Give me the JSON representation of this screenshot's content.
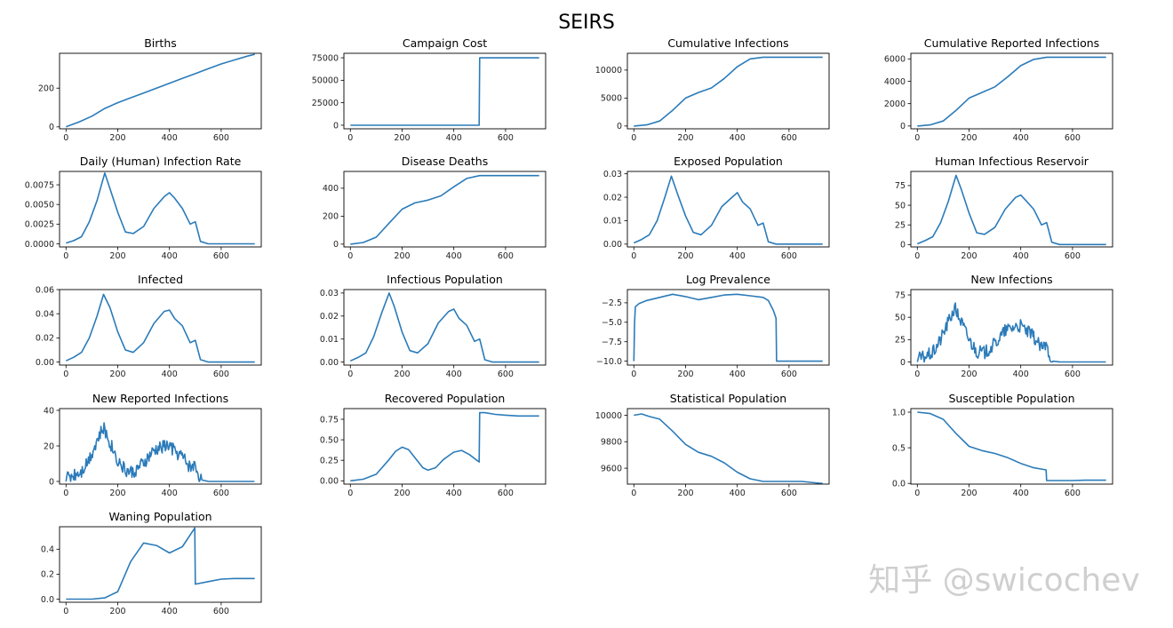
{
  "figure": {
    "title": "SEIRS",
    "watermark": "知乎 @swicochev"
  },
  "style": {
    "line_color": "#2b7bb9",
    "axes_color": "#000000"
  },
  "chart_data": [
    {
      "type": "line",
      "title": "Births",
      "xlim": [
        -25,
        755
      ],
      "ylim": [
        -10,
        380
      ],
      "xticks": [
        0,
        200,
        400,
        600
      ],
      "yticks": [
        0,
        200
      ],
      "ytick_labels": [
        "0",
        "200"
      ],
      "x": [
        0,
        50,
        100,
        150,
        200,
        250,
        300,
        350,
        400,
        450,
        500,
        550,
        600,
        650,
        700,
        730
      ],
      "y": [
        0,
        25,
        55,
        95,
        125,
        150,
        175,
        200,
        225,
        250,
        275,
        300,
        325,
        345,
        365,
        375
      ]
    },
    {
      "type": "line",
      "title": "Campaign Cost",
      "xlim": [
        -25,
        755
      ],
      "ylim": [
        -4000,
        80000
      ],
      "xticks": [
        0,
        200,
        400,
        600
      ],
      "yticks": [
        0,
        25000,
        50000,
        75000
      ],
      "ytick_labels": [
        "0",
        "25000",
        "50000",
        "75000"
      ],
      "x": [
        0,
        498,
        500,
        730
      ],
      "y": [
        0,
        0,
        75000,
        75000
      ]
    },
    {
      "type": "line",
      "title": "Cumulative Infections",
      "xlim": [
        -25,
        755
      ],
      "ylim": [
        -500,
        13000
      ],
      "xticks": [
        0,
        200,
        400,
        600
      ],
      "yticks": [
        0,
        5000,
        10000
      ],
      "ytick_labels": [
        "0",
        "5000",
        "10000"
      ],
      "x": [
        0,
        50,
        100,
        150,
        200,
        250,
        300,
        350,
        400,
        450,
        500,
        550,
        600,
        730
      ],
      "y": [
        0,
        200,
        900,
        2800,
        5000,
        6000,
        6800,
        8500,
        10600,
        12000,
        12300,
        12300,
        12300,
        12300
      ]
    },
    {
      "type": "line",
      "title": "Cumulative Reported Infections",
      "xlim": [
        -25,
        755
      ],
      "ylim": [
        -250,
        6500
      ],
      "xticks": [
        0,
        200,
        400,
        600
      ],
      "yticks": [
        0,
        2000,
        4000,
        6000
      ],
      "ytick_labels": [
        "0",
        "2000",
        "4000",
        "6000"
      ],
      "x": [
        0,
        50,
        100,
        150,
        200,
        250,
        300,
        350,
        400,
        450,
        500,
        550,
        600,
        730
      ],
      "y": [
        0,
        100,
        450,
        1400,
        2500,
        3000,
        3500,
        4400,
        5400,
        5950,
        6150,
        6150,
        6150,
        6150
      ]
    },
    {
      "type": "line",
      "title": "Daily (Human) Infection Rate",
      "xlim": [
        -25,
        755
      ],
      "ylim": [
        -0.0004,
        0.0092
      ],
      "xticks": [
        0,
        200,
        400,
        600
      ],
      "yticks": [
        0,
        0.0025,
        0.005,
        0.0075
      ],
      "ytick_labels": [
        "0.0000",
        "0.0025",
        "0.0050",
        "0.0075"
      ],
      "x": [
        0,
        30,
        60,
        90,
        120,
        150,
        170,
        200,
        230,
        260,
        300,
        340,
        380,
        400,
        420,
        450,
        480,
        500,
        520,
        550,
        600,
        730
      ],
      "y": [
        0.0001,
        0.0004,
        0.0009,
        0.0028,
        0.0055,
        0.009,
        0.007,
        0.004,
        0.0015,
        0.0013,
        0.0022,
        0.0045,
        0.006,
        0.0065,
        0.0058,
        0.0045,
        0.0025,
        0.0028,
        0.0003,
        0,
        0,
        0
      ]
    },
    {
      "type": "line",
      "title": "Disease Deaths",
      "xlim": [
        -25,
        755
      ],
      "ylim": [
        -20,
        520
      ],
      "xticks": [
        0,
        200,
        400,
        600
      ],
      "yticks": [
        0,
        200,
        400
      ],
      "ytick_labels": [
        "0",
        "200",
        "400"
      ],
      "x": [
        0,
        50,
        100,
        150,
        200,
        250,
        300,
        350,
        400,
        450,
        500,
        550,
        600,
        730
      ],
      "y": [
        0,
        12,
        50,
        150,
        250,
        295,
        315,
        345,
        410,
        470,
        490,
        490,
        490,
        490
      ]
    },
    {
      "type": "line",
      "title": "Exposed Population",
      "xlim": [
        -25,
        755
      ],
      "ylim": [
        -0.0012,
        0.031
      ],
      "xticks": [
        0,
        200,
        400,
        600
      ],
      "yticks": [
        0,
        0.01,
        0.02,
        0.03
      ],
      "ytick_labels": [
        "0.00",
        "0.01",
        "0.02",
        "0.03"
      ],
      "x": [
        0,
        30,
        60,
        90,
        120,
        145,
        170,
        200,
        230,
        260,
        300,
        340,
        380,
        400,
        420,
        450,
        480,
        500,
        520,
        550,
        600,
        730
      ],
      "y": [
        0.0005,
        0.002,
        0.004,
        0.01,
        0.02,
        0.029,
        0.021,
        0.012,
        0.005,
        0.004,
        0.008,
        0.016,
        0.02,
        0.022,
        0.018,
        0.015,
        0.008,
        0.009,
        0.001,
        0,
        0,
        0
      ]
    },
    {
      "type": "line",
      "title": "Human Infectious Reservoir",
      "xlim": [
        -25,
        755
      ],
      "ylim": [
        -3,
        93
      ],
      "xticks": [
        0,
        200,
        400,
        600
      ],
      "yticks": [
        0,
        25,
        50,
        75
      ],
      "ytick_labels": [
        "0",
        "25",
        "50",
        "75"
      ],
      "x": [
        0,
        30,
        60,
        90,
        120,
        150,
        170,
        200,
        230,
        260,
        300,
        340,
        380,
        400,
        420,
        450,
        480,
        500,
        520,
        550,
        600,
        730
      ],
      "y": [
        1,
        5,
        10,
        28,
        55,
        88,
        70,
        40,
        15,
        13,
        22,
        45,
        60,
        63,
        56,
        45,
        25,
        28,
        3,
        0,
        0,
        0
      ]
    },
    {
      "type": "line",
      "title": "Infected",
      "xlim": [
        -25,
        755
      ],
      "ylim": [
        -0.0025,
        0.06
      ],
      "xticks": [
        0,
        200,
        400,
        600
      ],
      "yticks": [
        0,
        0.02,
        0.04,
        0.06
      ],
      "ytick_labels": [
        "0.00",
        "0.02",
        "0.04",
        "0.06"
      ],
      "x": [
        0,
        30,
        60,
        90,
        120,
        145,
        170,
        200,
        230,
        260,
        300,
        340,
        380,
        400,
        420,
        450,
        480,
        500,
        520,
        550,
        600,
        730
      ],
      "y": [
        0.001,
        0.004,
        0.008,
        0.02,
        0.038,
        0.056,
        0.045,
        0.025,
        0.01,
        0.008,
        0.016,
        0.032,
        0.042,
        0.043,
        0.036,
        0.03,
        0.016,
        0.018,
        0.002,
        0,
        0,
        0
      ]
    },
    {
      "type": "line",
      "title": "Infectious Population",
      "xlim": [
        -25,
        755
      ],
      "ylim": [
        -0.0013,
        0.0315
      ],
      "xticks": [
        0,
        200,
        400,
        600
      ],
      "yticks": [
        0,
        0.01,
        0.02,
        0.03
      ],
      "ytick_labels": [
        "0.00",
        "0.01",
        "0.02",
        "0.03"
      ],
      "x": [
        0,
        30,
        60,
        90,
        120,
        150,
        170,
        200,
        230,
        260,
        300,
        340,
        380,
        400,
        420,
        450,
        480,
        500,
        520,
        550,
        600,
        730
      ],
      "y": [
        0.0005,
        0.002,
        0.004,
        0.011,
        0.021,
        0.03,
        0.024,
        0.013,
        0.005,
        0.004,
        0.008,
        0.017,
        0.022,
        0.023,
        0.019,
        0.016,
        0.009,
        0.01,
        0.001,
        0,
        0,
        0
      ]
    },
    {
      "type": "line",
      "title": "Log Prevalence",
      "xlim": [
        -25,
        755
      ],
      "ylim": [
        -10.5,
        -0.8
      ],
      "xticks": [
        0,
        200,
        400,
        600
      ],
      "yticks": [
        -10,
        -7.5,
        -5,
        -2.5
      ],
      "ytick_labels": [
        "−10.0",
        "−7.5",
        "−5.0",
        "−2.5"
      ],
      "x": [
        0,
        3,
        6,
        20,
        50,
        100,
        150,
        200,
        250,
        300,
        350,
        400,
        450,
        500,
        520,
        540,
        550,
        552,
        600,
        730
      ],
      "y": [
        -10,
        -5,
        -3,
        -2.6,
        -2.2,
        -1.8,
        -1.4,
        -1.7,
        -2.1,
        -1.8,
        -1.5,
        -1.4,
        -1.6,
        -1.8,
        -2.2,
        -3.5,
        -4.5,
        -10,
        -10,
        -10
      ]
    },
    {
      "type": "line",
      "title": "New Infections",
      "xlim": [
        -25,
        755
      ],
      "ylim": [
        -3.5,
        81
      ],
      "xticks": [
        0,
        200,
        400,
        600
      ],
      "yticks": [
        0,
        25,
        50,
        75
      ],
      "ytick_labels": [
        "0",
        "25",
        "50",
        "75"
      ],
      "x": [
        0,
        30,
        60,
        90,
        120,
        145,
        170,
        200,
        230,
        260,
        300,
        340,
        380,
        400,
        420,
        450,
        480,
        500,
        520,
        550,
        600,
        730
      ],
      "y": [
        3,
        6,
        10,
        25,
        45,
        60,
        45,
        25,
        12,
        10,
        20,
        35,
        40,
        40,
        35,
        28,
        15,
        18,
        1,
        0,
        0,
        0
      ],
      "noisy": true
    },
    {
      "type": "line",
      "title": "New Reported Infections",
      "xlim": [
        -25,
        755
      ],
      "ylim": [
        -1.5,
        41
      ],
      "xticks": [
        0,
        200,
        400,
        600
      ],
      "yticks": [
        0,
        20,
        40
      ],
      "ytick_labels": [
        "0",
        "20",
        "40"
      ],
      "x": [
        0,
        30,
        60,
        90,
        120,
        145,
        170,
        200,
        230,
        260,
        300,
        340,
        380,
        400,
        420,
        450,
        480,
        500,
        520,
        550,
        600,
        730
      ],
      "y": [
        2,
        4,
        6,
        13,
        23,
        30,
        22,
        12,
        6,
        5,
        10,
        17,
        20,
        20,
        17,
        14,
        8,
        9,
        1,
        0,
        0,
        0
      ],
      "noisy": true
    },
    {
      "type": "line",
      "title": "Recovered Population",
      "xlim": [
        -25,
        755
      ],
      "ylim": [
        -0.04,
        0.88
      ],
      "xticks": [
        0,
        200,
        400,
        600
      ],
      "yticks": [
        0,
        0.25,
        0.5,
        0.75
      ],
      "ytick_labels": [
        "0.00",
        "0.25",
        "0.50",
        "0.75"
      ],
      "x": [
        0,
        50,
        100,
        150,
        175,
        200,
        225,
        250,
        280,
        300,
        330,
        360,
        400,
        430,
        460,
        498,
        500,
        520,
        560,
        600,
        650,
        730
      ],
      "y": [
        0,
        0.02,
        0.08,
        0.26,
        0.36,
        0.41,
        0.38,
        0.28,
        0.16,
        0.13,
        0.16,
        0.26,
        0.35,
        0.37,
        0.32,
        0.23,
        0.83,
        0.83,
        0.81,
        0.8,
        0.79,
        0.79
      ]
    },
    {
      "type": "line",
      "title": "Statistical Population",
      "xlim": [
        -25,
        755
      ],
      "ylim": [
        9480,
        10050
      ],
      "xticks": [
        0,
        200,
        400,
        600
      ],
      "yticks": [
        9600,
        9800,
        10000
      ],
      "ytick_labels": [
        "9600",
        "9800",
        "10000"
      ],
      "x": [
        0,
        30,
        60,
        100,
        150,
        200,
        250,
        300,
        350,
        400,
        450,
        500,
        550,
        600,
        650,
        700,
        730
      ],
      "y": [
        10000,
        10010,
        9990,
        9970,
        9880,
        9780,
        9720,
        9690,
        9640,
        9570,
        9520,
        9500,
        9500,
        9500,
        9500,
        9490,
        9485
      ]
    },
    {
      "type": "line",
      "title": "Susceptible Population",
      "xlim": [
        -25,
        755
      ],
      "ylim": [
        -0.01,
        1.05
      ],
      "xticks": [
        0,
        200,
        400,
        600
      ],
      "yticks": [
        0,
        0.5,
        1.0
      ],
      "ytick_labels": [
        "0.0",
        "0.5",
        "1.0"
      ],
      "x": [
        0,
        50,
        100,
        150,
        200,
        250,
        300,
        350,
        400,
        450,
        498,
        500,
        550,
        600,
        650,
        730
      ],
      "y": [
        1.0,
        0.98,
        0.9,
        0.7,
        0.52,
        0.46,
        0.42,
        0.36,
        0.28,
        0.22,
        0.19,
        0.04,
        0.04,
        0.04,
        0.045,
        0.045
      ]
    },
    {
      "type": "line",
      "title": "Waning Population",
      "xlim": [
        -25,
        755
      ],
      "ylim": [
        -0.025,
        0.58
      ],
      "xticks": [
        0,
        200,
        400,
        600
      ],
      "yticks": [
        0,
        0.2,
        0.4
      ],
      "ytick_labels": [
        "0.0",
        "0.2",
        "0.4"
      ],
      "x": [
        0,
        100,
        150,
        200,
        250,
        300,
        350,
        400,
        450,
        498,
        500,
        550,
        600,
        650,
        730
      ],
      "y": [
        0,
        0,
        0.01,
        0.06,
        0.3,
        0.45,
        0.43,
        0.37,
        0.42,
        0.57,
        0.12,
        0.14,
        0.16,
        0.165,
        0.165
      ]
    }
  ]
}
